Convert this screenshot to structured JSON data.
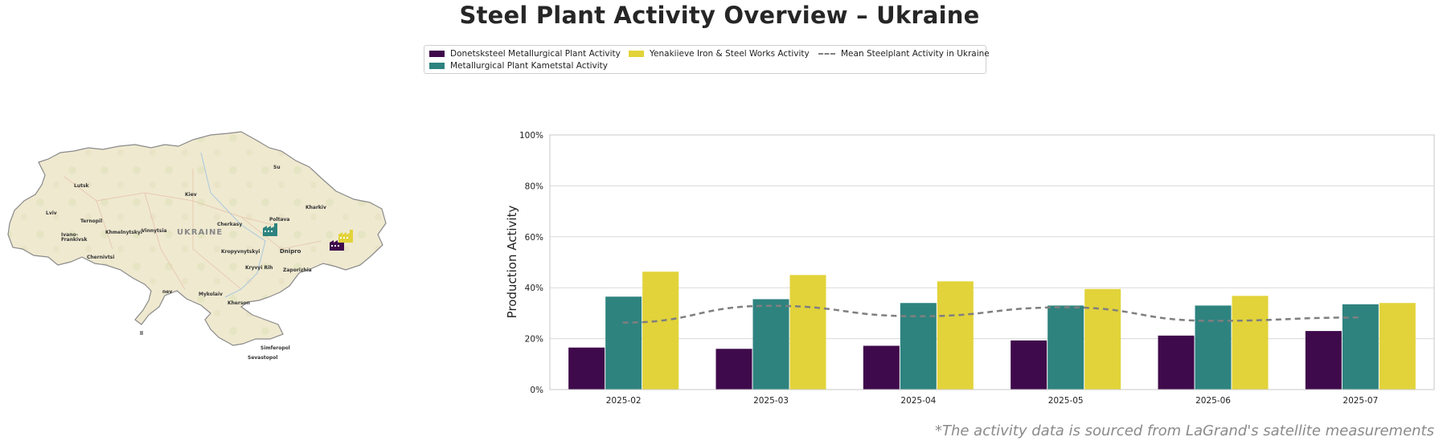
{
  "title": "Steel Plant Activity Overview – Ukraine",
  "footnote": "*The activity data is sourced from LaGrand's satellite measurements",
  "legend": {
    "items": [
      {
        "label": "Donetsksteel Metallurgical Plant Activity",
        "color": "#3f0a4b"
      },
      {
        "label": "Metallurgical Plant Kametstal Activity",
        "color": "#2e837f"
      },
      {
        "label": "Yenakiieve Iron & Steel Works Activity",
        "color": "#e2d33a"
      },
      {
        "label": "Mean Steelplant Activity in Ukraine",
        "color": "#7f7f7f"
      }
    ]
  },
  "map": {
    "country_label": "UKRAINE",
    "cities": [
      "Lutsk",
      "Kiev",
      "Kharkiv",
      "Lviv",
      "Ternopil",
      "Khmelnytskyi",
      "Vinnytsia",
      "Cherkasy",
      "Poltava",
      "Ivano-",
      "Frankivsk",
      "Chernivtsi",
      "Kropyvnytskyi",
      "Dnipro",
      "Kryvyi Rih",
      "Zaporizhia",
      "Mykolaiv",
      "Kherson",
      "Simferopol",
      "Sevastopol",
      "nev",
      "ll",
      "Su"
    ],
    "plant_icons": [
      {
        "name": "Metallurgical Plant Kametstal",
        "color": "#2e837f",
        "icon": "factory-icon"
      },
      {
        "name": "Donetsksteel Metallurgical Plant",
        "color": "#3f0a4b",
        "icon": "factory-icon"
      },
      {
        "name": "Yenakiieve Iron & Steel Works",
        "color": "#e2d33a",
        "icon": "factory-icon"
      }
    ]
  },
  "chart_data": {
    "type": "bar",
    "categories": [
      "2025-02",
      "2025-03",
      "2025-04",
      "2025-05",
      "2025-06",
      "2025-07"
    ],
    "series": [
      {
        "name": "Donetsksteel Metallurgical Plant Activity",
        "color": "#3f0a4b",
        "values": [
          16.5,
          16,
          17.2,
          19.3,
          21.2,
          23
        ]
      },
      {
        "name": "Metallurgical Plant Kametstal Activity",
        "color": "#2e837f",
        "values": [
          36.5,
          35.5,
          34,
          33,
          33,
          33.5
        ]
      },
      {
        "name": "Yenakiieve Iron & Steel Works Activity",
        "color": "#e2d33a",
        "values": [
          46.3,
          45,
          42.5,
          39.5,
          36.8,
          34
        ]
      }
    ],
    "line_series": {
      "name": "Mean Steelplant Activity in Ukraine",
      "color": "#7f7f7f",
      "style": "dashed",
      "values": [
        26.3,
        32.9,
        28.8,
        32.3,
        27,
        28.3
      ]
    },
    "ylabel": "Production Activity",
    "ylim": [
      0,
      100
    ],
    "yticks": [
      "0%",
      "20%",
      "40%",
      "60%",
      "80%",
      "100%"
    ],
    "grid": true
  }
}
